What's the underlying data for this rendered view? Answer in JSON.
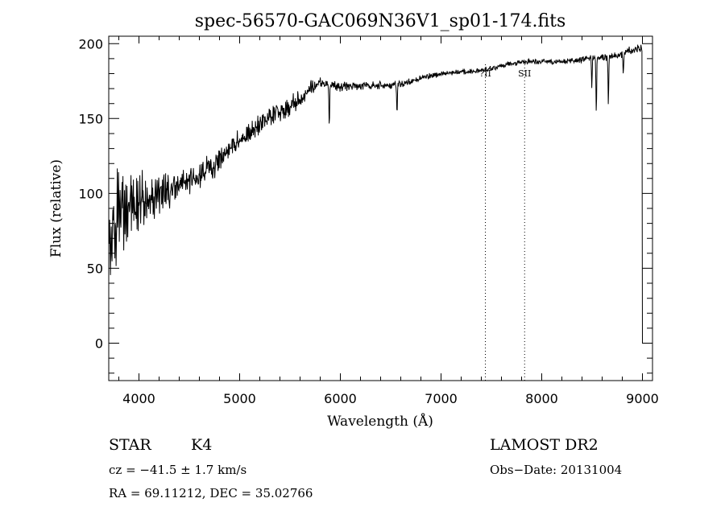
{
  "chart_data": {
    "type": "line",
    "title": "spec-56570-GAC069N36V1_sp01-174.fits",
    "xlabel": "Wavelength (Å)",
    "ylabel": "Flux (relative)",
    "xlim": [
      3700,
      9100
    ],
    "ylim": [
      -25,
      205
    ],
    "xticks": [
      4000,
      5000,
      6000,
      7000,
      8000,
      9000
    ],
    "yticks": [
      0,
      50,
      100,
      150,
      200
    ],
    "xtick_labels": [
      "4000",
      "5000",
      "6000",
      "7000",
      "8000",
      "9000"
    ],
    "ytick_labels": [
      "0",
      "50",
      "100",
      "150",
      "200"
    ],
    "grid": false,
    "markers": [
      {
        "x": 7440,
        "label": "?II"
      },
      {
        "x": 7830,
        "label": "SII"
      }
    ],
    "series": [
      {
        "name": "spectrum",
        "continuum": {
          "x": [
            3700,
            3800,
            3900,
            4000,
            4200,
            4400,
            4600,
            4800,
            5000,
            5200,
            5400,
            5600,
            5700,
            5800,
            6000,
            6200,
            6400,
            6600,
            6800,
            7000,
            7200,
            7400,
            7600,
            7800,
            8000,
            8200,
            8400,
            8600,
            8800,
            8900,
            9000
          ],
          "y": [
            70,
            85,
            90,
            95,
            100,
            105,
            112,
            122,
            135,
            145,
            155,
            162,
            170,
            174,
            171,
            172,
            172,
            173,
            177,
            180,
            181,
            182,
            185,
            188,
            188,
            188,
            190,
            191,
            193,
            196,
            197
          ]
        },
        "noise": {
          "x": [
            3700,
            4000,
            4400,
            5000,
            5600,
            5800,
            6500,
            7000,
            8000,
            8600,
            9000
          ],
          "amplitude": [
            40,
            25,
            12,
            9,
            8,
            4,
            3,
            2,
            2,
            3,
            4
          ]
        },
        "absorption_lines": [
          {
            "x": 5890,
            "depth": 30
          },
          {
            "x": 6563,
            "depth": 20
          },
          {
            "x": 8498,
            "depth": 20
          },
          {
            "x": 8542,
            "depth": 38
          },
          {
            "x": 8662,
            "depth": 33
          },
          {
            "x": 8810,
            "depth": 15
          }
        ],
        "edge_drop": {
          "x": 9000,
          "y": 0
        }
      }
    ]
  },
  "info": {
    "object_class": "STAR",
    "subclass": "K4",
    "survey": "LAMOST DR2",
    "cz": "cz = −41.5 ± 1.7 km/s",
    "obs_date": "Obs−Date: 20131004",
    "coords": "RA =  69.11212, DEC =  35.02766"
  }
}
